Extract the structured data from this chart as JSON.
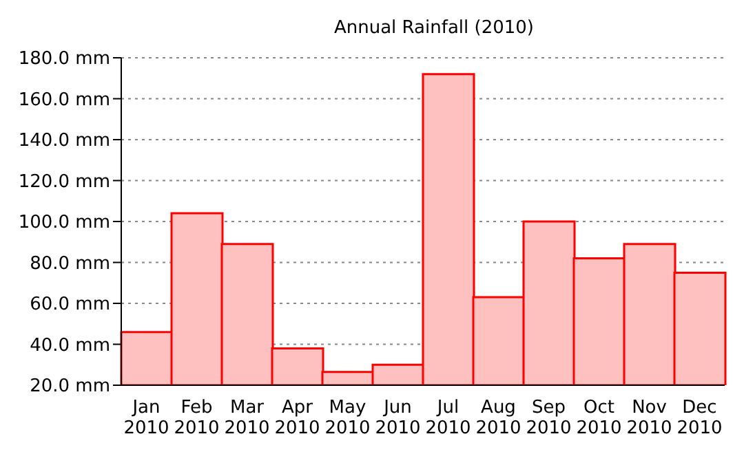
{
  "chart_data": {
    "type": "bar",
    "title": "Annual Rainfall (2010)",
    "categories": [
      "Jan 2010",
      "Feb 2010",
      "Mar 2010",
      "Apr 2010",
      "May 2010",
      "Jun 2010",
      "Jul 2010",
      "Aug 2010",
      "Sep 2010",
      "Oct 2010",
      "Nov 2010",
      "Dec 2010"
    ],
    "values": [
      46,
      104,
      89,
      38,
      26.5,
      30,
      172,
      63,
      100,
      82,
      89,
      75
    ],
    "color": "#ffc0c0",
    "ylim": [
      20,
      180
    ],
    "yticks": [
      {
        "value": 20,
        "label": "20.0 mm"
      },
      {
        "value": 40,
        "label": "40.0 mm"
      },
      {
        "value": 60,
        "label": "60.0 mm"
      },
      {
        "value": 80,
        "label": "80.0 mm"
      },
      {
        "value": 100,
        "label": "100.0 mm"
      },
      {
        "value": 120,
        "label": "120.0 mm"
      },
      {
        "value": 140,
        "label": "140.0 mm"
      },
      {
        "value": 160,
        "label": "160.0 mm"
      },
      {
        "value": 180,
        "label": "180.0 mm"
      }
    ],
    "grid": "y"
  }
}
